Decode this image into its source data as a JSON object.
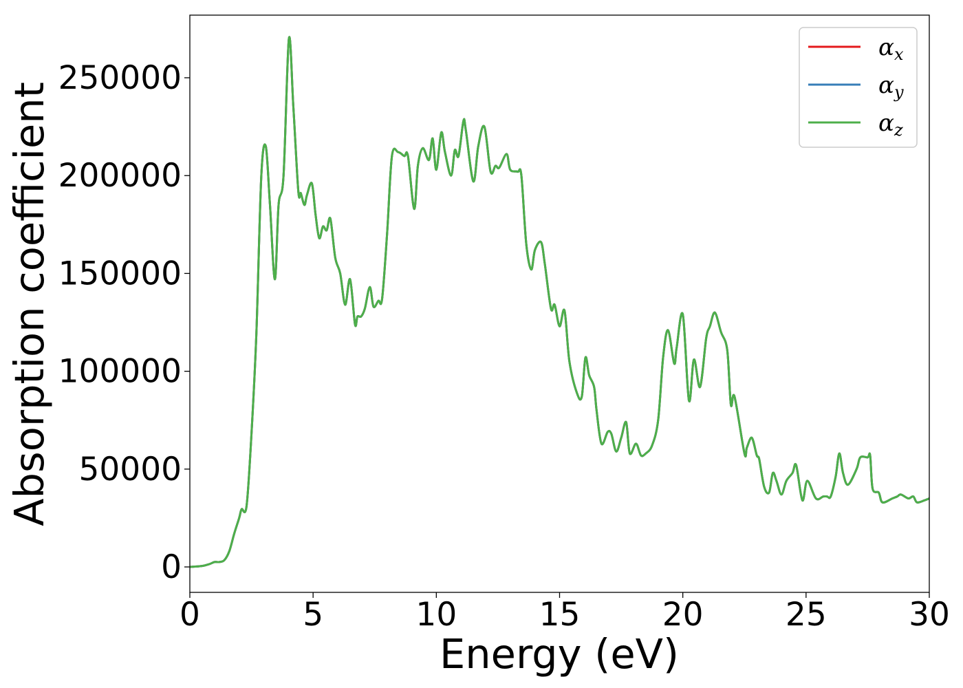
{
  "chart_data": {
    "type": "line",
    "xlabel": "Energy (eV)",
    "ylabel": "Absorption coefficient",
    "xlim": [
      0,
      30
    ],
    "ylim": [
      -13000,
      282000
    ],
    "xticks": [
      0,
      5,
      10,
      15,
      20,
      25,
      30
    ],
    "yticks": [
      0,
      50000,
      100000,
      150000,
      200000,
      250000
    ],
    "grid": false,
    "legend_placement": "top-right",
    "series": [
      {
        "name": "α",
        "subscript": "x",
        "color": "#e41a1c"
      },
      {
        "name": "α",
        "subscript": "y",
        "color": "#377eb8"
      },
      {
        "name": "α",
        "subscript": "z",
        "color": "#4daf4a"
      }
    ],
    "shared_curve": {
      "x": [
        0,
        0.5,
        0.8,
        1.0,
        1.2,
        1.4,
        1.6,
        1.8,
        2.0,
        2.1,
        2.3,
        2.5,
        2.7,
        2.9,
        3.08,
        3.25,
        3.45,
        3.6,
        3.8,
        4.02,
        4.2,
        4.4,
        4.5,
        4.65,
        4.75,
        4.95,
        5.1,
        5.25,
        5.4,
        5.55,
        5.7,
        5.9,
        6.1,
        6.3,
        6.5,
        6.7,
        6.8,
        6.95,
        7.1,
        7.3,
        7.45,
        7.65,
        7.8,
        8.0,
        8.2,
        8.45,
        8.7,
        8.85,
        9.1,
        9.25,
        9.45,
        9.7,
        9.85,
        10.0,
        10.2,
        10.35,
        10.6,
        10.75,
        10.9,
        11.1,
        11.2,
        11.5,
        11.7,
        11.95,
        12.2,
        12.4,
        12.55,
        12.85,
        13.0,
        13.3,
        13.45,
        13.65,
        13.85,
        14.0,
        14.25,
        14.4,
        14.65,
        14.8,
        15.0,
        15.2,
        15.4,
        15.7,
        15.9,
        16.05,
        16.2,
        16.4,
        16.5,
        16.7,
        16.95,
        17.1,
        17.3,
        17.5,
        17.7,
        17.85,
        18.1,
        18.3,
        18.5,
        18.75,
        19.0,
        19.2,
        19.4,
        19.65,
        19.75,
        20.0,
        20.25,
        20.45,
        20.7,
        20.95,
        21.1,
        21.3,
        21.55,
        21.8,
        21.95,
        22.1,
        22.5,
        22.6,
        22.8,
        23.0,
        23.1,
        23.3,
        23.5,
        23.65,
        23.8,
        24.0,
        24.2,
        24.45,
        24.6,
        24.85,
        25.05,
        25.4,
        25.7,
        25.85,
        26.0,
        26.2,
        26.35,
        26.5,
        26.7,
        27.05,
        27.2,
        27.5,
        27.6,
        27.7,
        27.95,
        28.1,
        28.5,
        28.7,
        28.85,
        29.15,
        29.35,
        29.5,
        29.8,
        30.0
      ],
      "y": [
        0,
        500,
        1500,
        2500,
        2500,
        3500,
        8000,
        17000,
        25000,
        29500,
        31000,
        68000,
        120000,
        200000,
        215000,
        185000,
        147000,
        185000,
        200000,
        270000,
        235000,
        192000,
        191000,
        185000,
        190000,
        196000,
        180000,
        168000,
        174000,
        172000,
        178000,
        158000,
        150000,
        134000,
        147000,
        124000,
        128000,
        128000,
        132000,
        143000,
        133000,
        136000,
        137000,
        170000,
        210000,
        212000,
        210000,
        210000,
        183000,
        205000,
        214000,
        208000,
        219000,
        203000,
        222000,
        212000,
        200000,
        213000,
        210000,
        228000,
        223000,
        197000,
        215000,
        225000,
        202000,
        205000,
        204000,
        211000,
        203000,
        202000,
        200000,
        165000,
        152000,
        162000,
        166000,
        155000,
        132000,
        134000,
        123000,
        131000,
        105000,
        89000,
        87000,
        107000,
        98000,
        92000,
        80000,
        63000,
        69000,
        68000,
        59000,
        66000,
        74000,
        58000,
        63000,
        57000,
        58000,
        62000,
        75000,
        107000,
        121000,
        104000,
        112000,
        129000,
        85000,
        106000,
        92000,
        117000,
        123000,
        130000,
        120000,
        111000,
        83000,
        87000,
        58000,
        61000,
        66000,
        57000,
        55000,
        41000,
        38000,
        48000,
        44000,
        37000,
        44000,
        48000,
        52000,
        34000,
        44000,
        35000,
        36000,
        36000,
        36000,
        46000,
        58000,
        48000,
        42000,
        50000,
        56000,
        56000,
        57000,
        40000,
        38000,
        33000,
        35000,
        36000,
        37000,
        35000,
        36000,
        33000,
        34000,
        35000
      ]
    }
  }
}
